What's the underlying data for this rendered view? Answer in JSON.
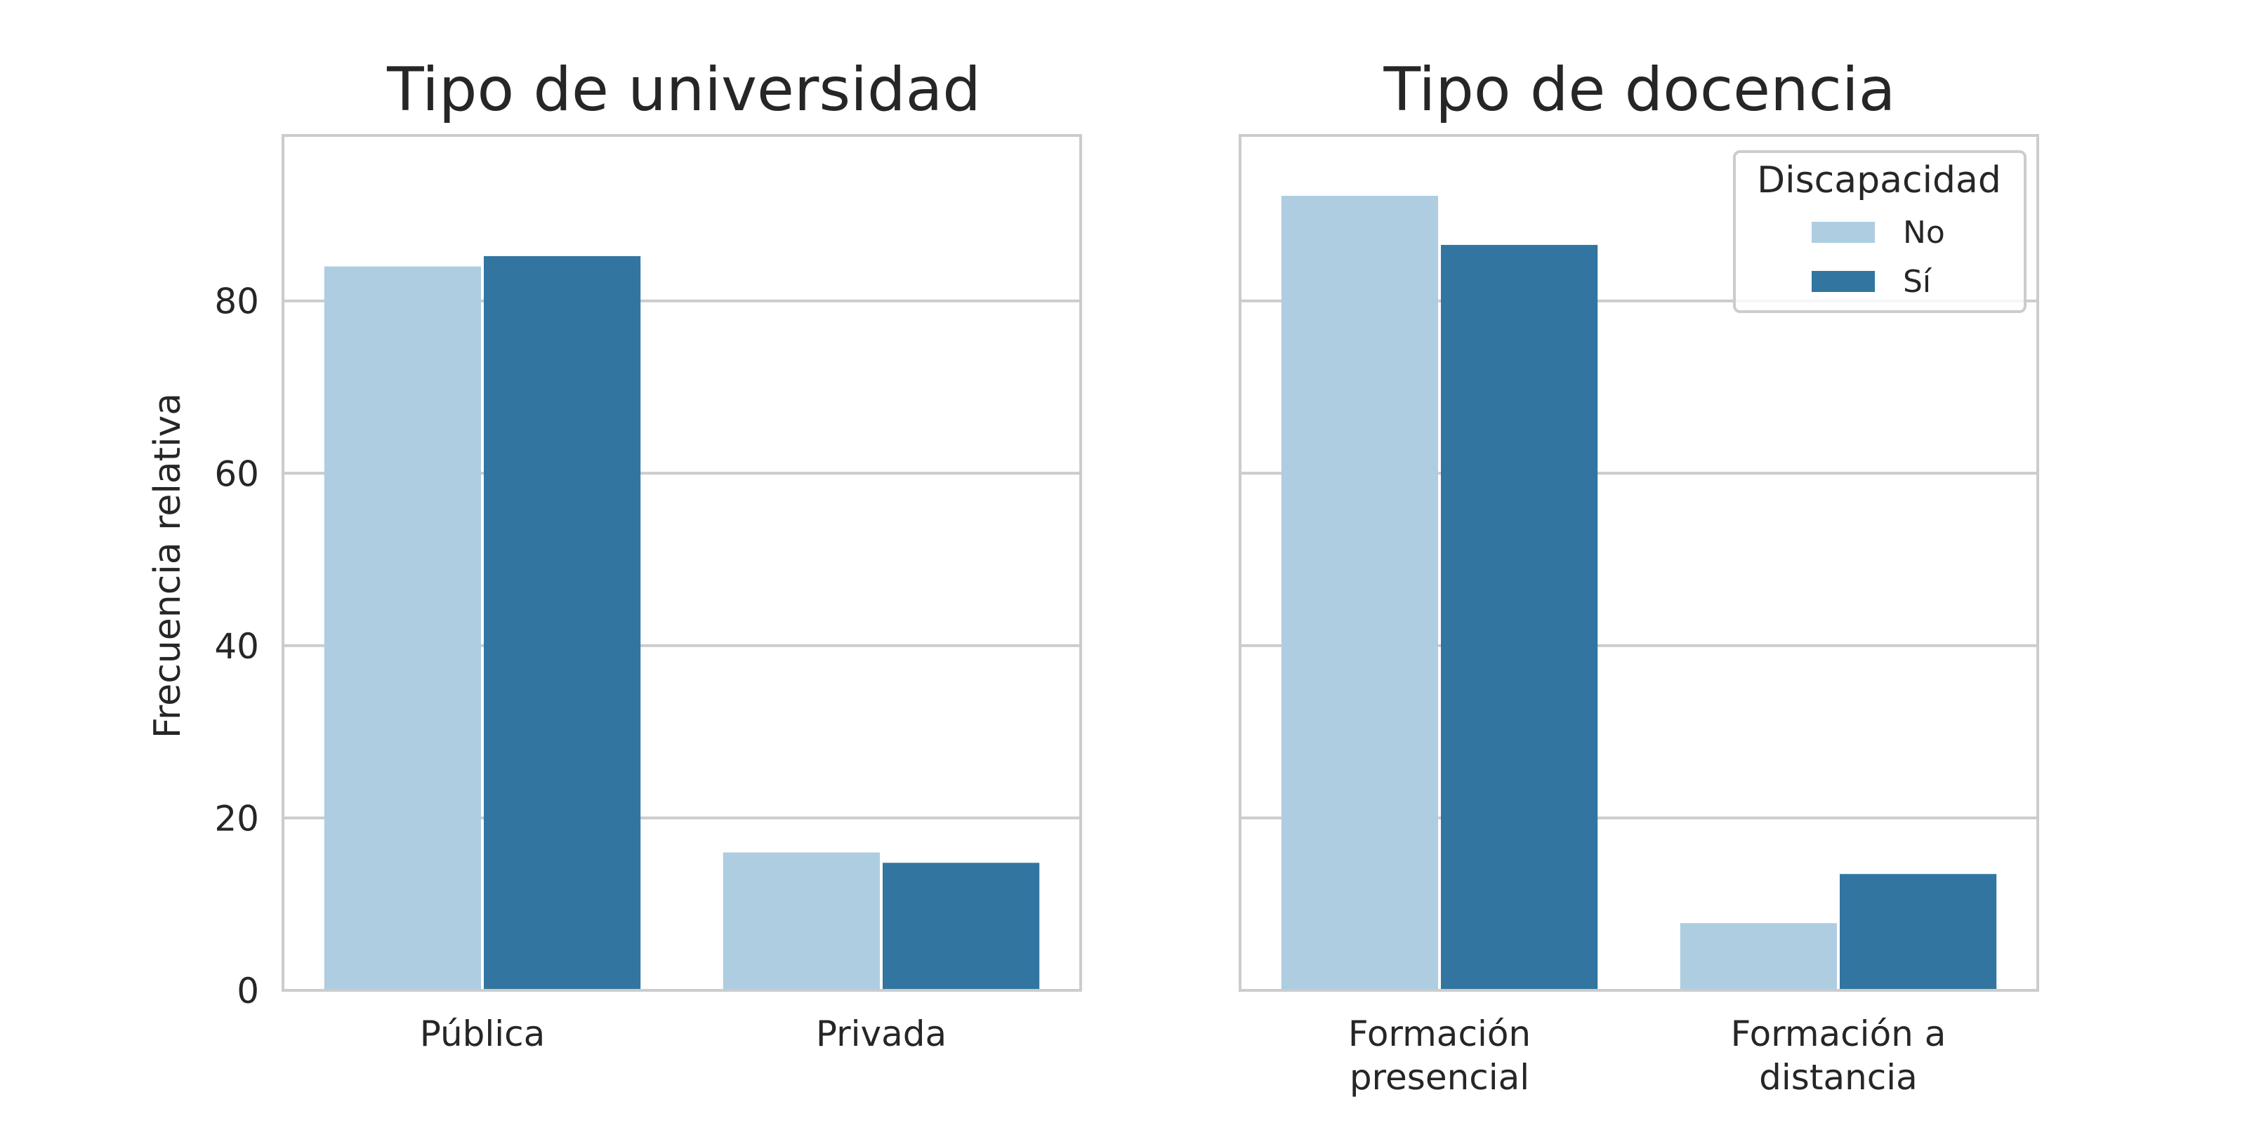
{
  "chart_data": [
    {
      "type": "bar",
      "title": "Tipo de universidad",
      "xlabel": "",
      "ylabel": "Frecuencia relativa",
      "categories": [
        "Pública",
        "Privada"
      ],
      "series": [
        {
          "name": "No",
          "values": [
            84.0,
            16.0
          ]
        },
        {
          "name": "Sí",
          "values": [
            85.2,
            14.8
          ]
        }
      ],
      "ylim": [
        0,
        99.2
      ],
      "yticks": [
        0,
        20,
        40,
        60,
        80
      ],
      "grid": true,
      "legend": null
    },
    {
      "type": "bar",
      "title": "Tipo de docencia",
      "xlabel": "",
      "ylabel": "",
      "categories": [
        "Formación presencial",
        "Formación a distancia"
      ],
      "category_lines": [
        [
          "Formación",
          "presencial"
        ],
        [
          "Formación a",
          "distancia"
        ]
      ],
      "series": [
        {
          "name": "No",
          "values": [
            92.2,
            7.8
          ]
        },
        {
          "name": "Sí",
          "values": [
            86.5,
            13.5
          ]
        }
      ],
      "ylim": [
        0,
        99.2
      ],
      "yticks": [
        0,
        20,
        40,
        60,
        80
      ],
      "grid": true,
      "legend": "top-right"
    }
  ],
  "legend": {
    "title": "Discapacidad",
    "items": [
      "No",
      "Sí"
    ]
  },
  "colors": {
    "No": "#aecde1",
    "Sí": "#3275a1",
    "grid": "#cccccc",
    "text": "#262626"
  }
}
